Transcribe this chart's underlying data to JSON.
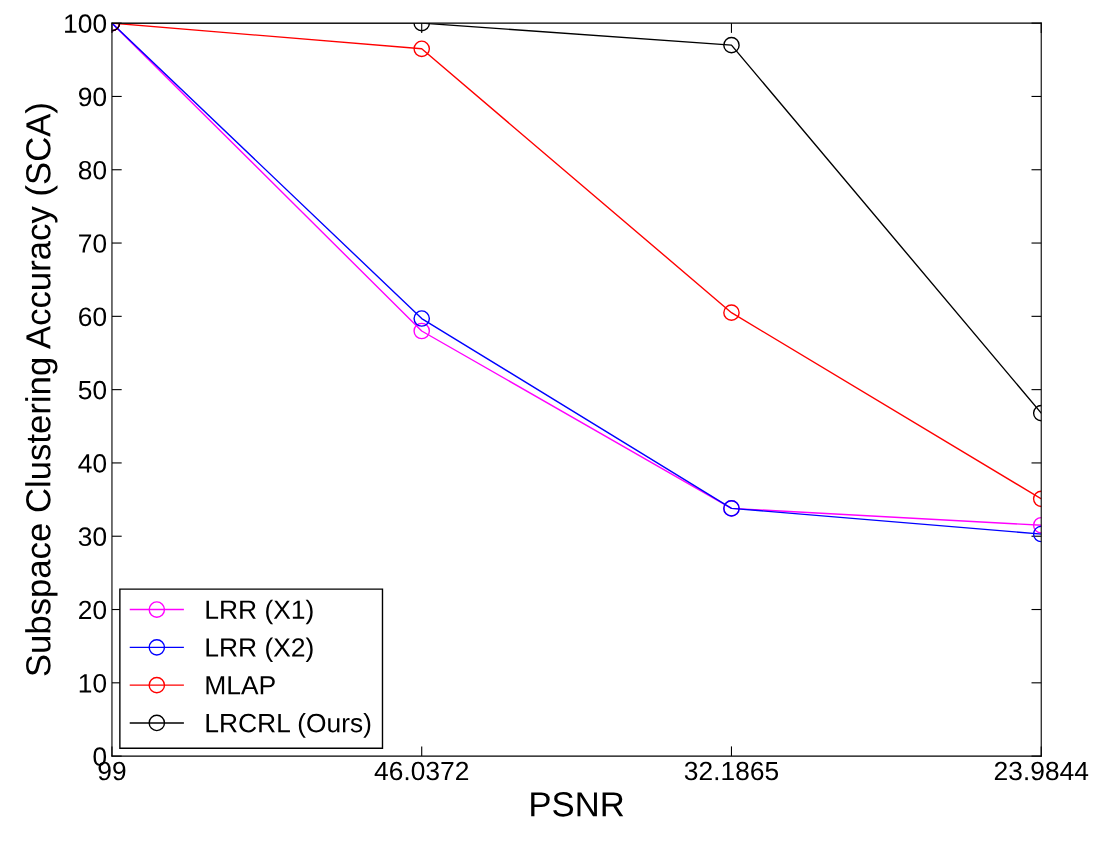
{
  "chart_data": {
    "type": "line",
    "xlabel": "PSNR",
    "ylabel": "Subspace Clustering Accuracy (SCA)",
    "categories": [
      "99",
      "46.0372",
      "32.1865",
      "23.9844"
    ],
    "series": [
      {
        "name": "LRR (X1)",
        "color": "#ff00ff",
        "values": [
          100,
          58.0,
          33.8,
          31.5
        ]
      },
      {
        "name": "LRR (X2)",
        "color": "#0000ff",
        "values": [
          100,
          59.7,
          33.8,
          30.3
        ]
      },
      {
        "name": "MLAP",
        "color": "#ff0000",
        "values": [
          100,
          96.5,
          60.5,
          35.1
        ]
      },
      {
        "name": "LRCRL (Ours)",
        "color": "#000000",
        "values": [
          100,
          100,
          97.0,
          46.8
        ]
      }
    ],
    "ylim": [
      0,
      100
    ],
    "yticks": [
      0,
      10,
      20,
      30,
      40,
      50,
      60,
      70,
      80,
      90,
      100
    ],
    "grid": false,
    "legend": "bottom left",
    "marker": "circle",
    "line_style": "solid"
  }
}
